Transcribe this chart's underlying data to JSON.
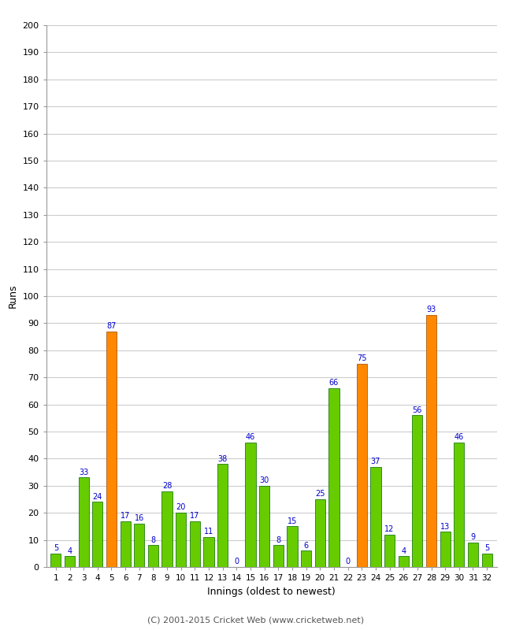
{
  "xlabel": "Innings (oldest to newest)",
  "ylabel": "Runs",
  "values": [
    5,
    4,
    33,
    24,
    87,
    17,
    16,
    8,
    28,
    20,
    17,
    11,
    38,
    0,
    46,
    30,
    8,
    15,
    6,
    25,
    66,
    0,
    75,
    37,
    12,
    4,
    56,
    93,
    13,
    46,
    9,
    5
  ],
  "colors": [
    "#66cc00",
    "#66cc00",
    "#66cc00",
    "#66cc00",
    "#ff8800",
    "#66cc00",
    "#66cc00",
    "#66cc00",
    "#66cc00",
    "#66cc00",
    "#66cc00",
    "#66cc00",
    "#66cc00",
    "#66cc00",
    "#66cc00",
    "#66cc00",
    "#66cc00",
    "#66cc00",
    "#66cc00",
    "#66cc00",
    "#66cc00",
    "#66cc00",
    "#ff8800",
    "#66cc00",
    "#66cc00",
    "#66cc00",
    "#66cc00",
    "#ff8800",
    "#66cc00",
    "#66cc00",
    "#66cc00",
    "#66cc00"
  ],
  "x_labels": [
    "1",
    "2",
    "3",
    "4",
    "5",
    "6",
    "7",
    "8",
    "9",
    "10",
    "11",
    "12",
    "13",
    "14",
    "15",
    "16",
    "17",
    "18",
    "19",
    "20",
    "21",
    "22",
    "23",
    "24",
    "25",
    "26",
    "27",
    "28",
    "29",
    "30",
    "31",
    "32"
  ],
  "ylim": [
    0,
    200
  ],
  "yticks": [
    0,
    10,
    20,
    30,
    40,
    50,
    60,
    70,
    80,
    90,
    100,
    110,
    120,
    130,
    140,
    150,
    160,
    170,
    180,
    190,
    200
  ],
  "label_color": "#0000cc",
  "bar_edge_color": "#006600",
  "orange_edge_color": "#994400",
  "footer": "(C) 2001-2015 Cricket Web (www.cricketweb.net)",
  "bg_color": "#ffffff",
  "plot_bg_color": "#ffffff",
  "grid_color": "#cccccc"
}
